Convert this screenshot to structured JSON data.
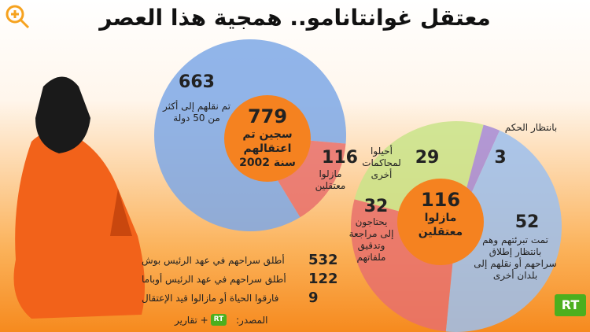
{
  "title": "معتقل غوانتانامو.. همجية هذا العصر",
  "chart_data": [
    {
      "type": "pie",
      "center_value": 779,
      "center_label": "سجين تم اعتقالهم سنة 2002",
      "categories": [
        "تم نقلهم إلى أكثر من 50 دولة",
        "مازلوا معتقلين"
      ],
      "values": [
        663,
        116
      ],
      "colors": [
        "#7ea8e6",
        "#e8706c"
      ]
    },
    {
      "type": "pie",
      "center_value": 116,
      "center_label": "مازلوا معتقلين",
      "categories": [
        "أحيلوا لمحاكمات أخرى",
        "بانتظار الحكم",
        "تمت تبرئتهم وهم بانتظار إطلاق سراحهم أو نقلهم إلى بلدان أخرى",
        "يحتاجون إلى مراجعة وتدقيق ملفاتهم"
      ],
      "values": [
        29,
        3,
        52,
        32
      ],
      "colors": [
        "#c9e48a",
        "#a58ad6",
        "#9cc0ee",
        "#e8706c"
      ]
    }
  ],
  "breakdown": [
    {
      "value": 532,
      "label": "أطلق سراحهم في عهد الرئيس بوش"
    },
    {
      "value": 122,
      "label": "أطلق سراحهم في عهد الرئيس أوباما"
    },
    {
      "value": 9,
      "label": "فارقوا الحياة أو مازالوا قيد الإعتقال"
    }
  ],
  "source_label": "المصدر:",
  "source_suffix": "+ تقارير",
  "logo": "RT"
}
